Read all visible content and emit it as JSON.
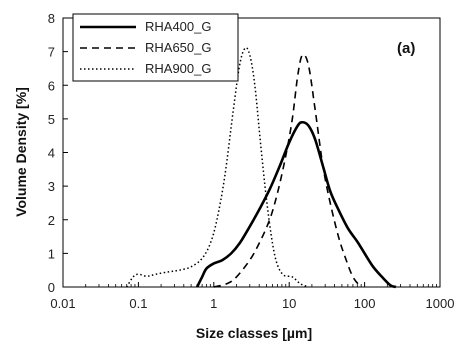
{
  "chart_data": {
    "type": "line",
    "xscale": "log",
    "xlim": [
      0.01,
      1000
    ],
    "ylim": [
      0,
      8
    ],
    "x_ticks": [
      "0.01",
      "0.1",
      "1",
      "10",
      "100",
      "1000"
    ],
    "y_ticks": [
      "0",
      "1",
      "2",
      "3",
      "4",
      "5",
      "6",
      "7",
      "8"
    ],
    "xlabel": "Size classes [µm]",
    "ylabel": "Volume Density [%]",
    "annotation": "(a)",
    "legend_position": "top-left",
    "grid": false,
    "series": [
      {
        "name": "RHA400_G",
        "style": "solid",
        "color": "#000000",
        "points": [
          [
            0.6,
            0.0
          ],
          [
            0.7,
            0.3
          ],
          [
            0.8,
            0.55
          ],
          [
            1.0,
            0.7
          ],
          [
            1.3,
            0.8
          ],
          [
            1.7,
            1.0
          ],
          [
            2.2,
            1.3
          ],
          [
            3.0,
            1.8
          ],
          [
            4.0,
            2.3
          ],
          [
            5.5,
            2.9
          ],
          [
            7.5,
            3.6
          ],
          [
            10.0,
            4.3
          ],
          [
            13.0,
            4.8
          ],
          [
            15.0,
            4.9
          ],
          [
            18.0,
            4.8
          ],
          [
            22.0,
            4.4
          ],
          [
            28.0,
            3.6
          ],
          [
            35.0,
            2.85
          ],
          [
            45.0,
            2.3
          ],
          [
            60.0,
            1.75
          ],
          [
            80.0,
            1.35
          ],
          [
            100.0,
            1.0
          ],
          [
            130.0,
            0.6
          ],
          [
            170.0,
            0.3
          ],
          [
            220.0,
            0.05
          ],
          [
            260.0,
            0.0
          ]
        ]
      },
      {
        "name": "RHA650_G",
        "style": "dashed",
        "color": "#000000",
        "points": [
          [
            1.0,
            0.0
          ],
          [
            1.5,
            0.1
          ],
          [
            2.0,
            0.3
          ],
          [
            3.0,
            0.8
          ],
          [
            4.0,
            1.3
          ],
          [
            5.5,
            2.0
          ],
          [
            7.0,
            2.8
          ],
          [
            9.0,
            3.9
          ],
          [
            11.0,
            5.0
          ],
          [
            13.0,
            6.3
          ],
          [
            15.0,
            6.9
          ],
          [
            18.0,
            6.6
          ],
          [
            22.0,
            5.3
          ],
          [
            28.0,
            3.6
          ],
          [
            35.0,
            2.5
          ],
          [
            45.0,
            1.5
          ],
          [
            55.0,
            0.9
          ],
          [
            70.0,
            0.3
          ],
          [
            90.0,
            0.0
          ]
        ]
      },
      {
        "name": "RHA900_G",
        "style": "dotted",
        "color": "#000000",
        "points": [
          [
            0.07,
            0.0
          ],
          [
            0.085,
            0.3
          ],
          [
            0.1,
            0.38
          ],
          [
            0.13,
            0.32
          ],
          [
            0.17,
            0.38
          ],
          [
            0.25,
            0.45
          ],
          [
            0.35,
            0.5
          ],
          [
            0.5,
            0.6
          ],
          [
            0.7,
            0.85
          ],
          [
            0.9,
            1.3
          ],
          [
            1.1,
            2.0
          ],
          [
            1.4,
            3.3
          ],
          [
            1.8,
            5.2
          ],
          [
            2.2,
            6.6
          ],
          [
            2.6,
            7.1
          ],
          [
            3.0,
            6.9
          ],
          [
            3.5,
            6.0
          ],
          [
            4.2,
            4.2
          ],
          [
            5.0,
            2.6
          ],
          [
            6.0,
            1.3
          ],
          [
            7.0,
            0.65
          ],
          [
            8.5,
            0.35
          ],
          [
            11.0,
            0.3
          ],
          [
            14.0,
            0.1
          ],
          [
            18.0,
            0.0
          ]
        ]
      }
    ]
  }
}
